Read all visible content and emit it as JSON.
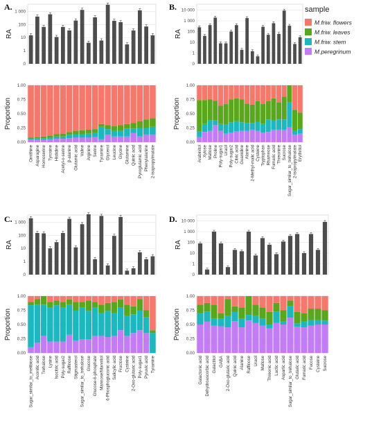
{
  "legend": {
    "title": "sample",
    "items": [
      {
        "label": "M.friw. flowers",
        "color": "#f4786c"
      },
      {
        "label": "M.friw. leaves",
        "color": "#5aa71f"
      },
      {
        "label": "M.friw. stem",
        "color": "#1fb7be"
      },
      {
        "label": "M.peregrinum",
        "color": "#c27cf4"
      }
    ]
  },
  "chart_data": [
    {
      "panel": "A.",
      "type": "bar",
      "ylabel": "RA",
      "scale": "log",
      "yticks": [
        "0",
        "1",
        "10",
        "100",
        "1 000"
      ],
      "categories": [
        "Ornithine",
        "Asparagine",
        "Homoserine",
        "Tyrosine",
        "Histidine",
        "Acetyl-o-serine",
        "β-alanine",
        "Glutamic acid",
        "Valine",
        "Arginine",
        "Serine",
        "Tyramine",
        "Glycerol",
        "Leucine",
        "Glycine",
        "Glutamine",
        "Quinic acid",
        "Pyroglutamic acid",
        "Phenylalanine",
        "2-isopropylmalate"
      ],
      "values": [
        15,
        400,
        65,
        600,
        11,
        65,
        35,
        200,
        1300,
        4,
        350,
        6,
        3200,
        190,
        150,
        3,
        35,
        1200,
        70,
        15
      ],
      "prop_ylabel": "Proportion",
      "prop_yticks": [
        "0.00",
        "0.25",
        "0.50",
        "0.75",
        "1.00"
      ],
      "proportions": {
        "M.friw. flowers": [
          0.92,
          0.91,
          0.9,
          0.89,
          0.86,
          0.85,
          0.82,
          0.8,
          0.79,
          0.78,
          0.77,
          0.68,
          0.7,
          0.72,
          0.7,
          0.68,
          0.66,
          0.63,
          0.6,
          0.58
        ],
        "M.friw. leaves": [
          0.02,
          0.02,
          0.03,
          0.03,
          0.04,
          0.05,
          0.05,
          0.06,
          0.07,
          0.07,
          0.07,
          0.05,
          0.07,
          0.08,
          0.1,
          0.08,
          0.1,
          0.12,
          0.15,
          0.15
        ],
        "M.friw. stem": [
          0.02,
          0.03,
          0.03,
          0.03,
          0.04,
          0.04,
          0.06,
          0.06,
          0.06,
          0.07,
          0.07,
          0.22,
          0.1,
          0.1,
          0.1,
          0.14,
          0.08,
          0.15,
          0.12,
          0.14
        ],
        "M.peregrinum": [
          0.04,
          0.04,
          0.04,
          0.05,
          0.06,
          0.06,
          0.07,
          0.08,
          0.08,
          0.08,
          0.09,
          0.05,
          0.13,
          0.1,
          0.1,
          0.1,
          0.16,
          0.1,
          0.13,
          0.13
        ]
      }
    },
    {
      "panel": "B.",
      "type": "bar",
      "ylabel": "RA",
      "scale": "log",
      "yticks": [
        "0",
        "1",
        "10",
        "100",
        "1 000",
        "10 000"
      ],
      "categories": [
        "Arabinitol",
        "Xylose",
        "Maltose",
        "Proline",
        "Poly-sugar1",
        "Uracil",
        "Poly-sugar2",
        "Citric acid",
        "Guanidine",
        "Alanine",
        "2-Methyl-malic acid",
        "Cysteine",
        "Tryptophan",
        "Rhamnose",
        "Fumaric acid",
        "Threonine",
        "Sucrose",
        "Sugar_similar_to_trehalose",
        "2-isopropylmalate",
        "Erythritol"
      ],
      "values": [
        250,
        40,
        400,
        2000,
        8,
        8,
        100,
        400,
        2,
        1800,
        1.5,
        0.5,
        280,
        50,
        600,
        60,
        9000,
        350,
        7,
        30
      ],
      "prop_ylabel": "Proportion",
      "prop_yticks": [
        "0.00",
        "0.25",
        "0.50",
        "0.75",
        "1.00"
      ],
      "proportions": {
        "M.friw. flowers": [
          0.26,
          0.26,
          0.25,
          0.27,
          0.36,
          0.33,
          0.25,
          0.23,
          0.25,
          0.32,
          0.34,
          0.28,
          0.33,
          0.28,
          0.23,
          0.3,
          0.2,
          0.0,
          0.43,
          0.48
        ],
        "M.friw. leaves": [
          0.55,
          0.42,
          0.37,
          0.35,
          0.32,
          0.36,
          0.4,
          0.4,
          0.4,
          0.34,
          0.32,
          0.36,
          0.35,
          0.32,
          0.38,
          0.3,
          0.4,
          0.3,
          0.37,
          0.29
        ],
        "M.friw. stem": [
          0.1,
          0.14,
          0.18,
          0.08,
          0.12,
          0.16,
          0.18,
          0.18,
          0.15,
          0.14,
          0.12,
          0.16,
          0.15,
          0.22,
          0.17,
          0.18,
          0.18,
          0.44,
          0.07,
          0.08
        ],
        "M.peregrinum": [
          0.09,
          0.18,
          0.2,
          0.3,
          0.2,
          0.15,
          0.17,
          0.19,
          0.2,
          0.2,
          0.22,
          0.2,
          0.17,
          0.18,
          0.22,
          0.22,
          0.22,
          0.26,
          0.13,
          0.15
        ]
      }
    },
    {
      "panel": "C.",
      "type": "bar",
      "ylabel": "RA",
      "scale": "log",
      "yticks": [
        "0",
        "1",
        "10",
        "100",
        "1 000"
      ],
      "categories": [
        "Sugar_similar_to_melibiose",
        "Aconitic acid",
        "Trehalose",
        "Lysine",
        "Isocitric acid",
        "Poly-sugar2",
        "Raffinose",
        "Stigmasterol",
        "Sugar_similar_to_trehalose",
        "Glucose",
        "Glucose-6-phosphate",
        "Mannose/Mannitol",
        "6-Phosphogluconic acid",
        "Salicylic acid",
        "Fructose",
        "Cysteine",
        "2-Oxo-glutaric acid",
        "Poly-sugar1",
        "Pyruvic acid",
        "Tyramine"
      ],
      "values": [
        2000,
        150,
        140,
        10,
        30,
        150,
        1800,
        12,
        700,
        4000,
        1.5,
        3000,
        0.5,
        90,
        2500,
        0.2,
        0.3,
        5,
        1.5,
        2.5
      ],
      "prop_ylabel": "Proportion",
      "prop_yticks": [
        "0.00",
        "0.25",
        "0.50",
        "0.75",
        "1.00"
      ],
      "proportions": {
        "M.friw. flowers": [
          0.1,
          0.05,
          0.0,
          0.1,
          0.08,
          0.1,
          0.06,
          0.1,
          0.1,
          0.08,
          0.1,
          0.15,
          0.12,
          0.1,
          0.06,
          0.15,
          0.18,
          0.05,
          0.25,
          0.6
        ],
        "M.friw. leaves": [
          0.06,
          0.1,
          0.15,
          0.1,
          0.08,
          0.1,
          0.09,
          0.15,
          0.1,
          0.18,
          0.1,
          0.15,
          0.14,
          0.2,
          0.14,
          0.2,
          0.14,
          0.2,
          0.12,
          0.05
        ],
        "M.friw. stem": [
          0.74,
          0.67,
          0.55,
          0.6,
          0.64,
          0.6,
          0.53,
          0.53,
          0.56,
          0.5,
          0.5,
          0.4,
          0.46,
          0.4,
          0.4,
          0.35,
          0.33,
          0.35,
          0.28,
          0.35
        ],
        "M.peregrinum": [
          0.1,
          0.18,
          0.3,
          0.2,
          0.2,
          0.2,
          0.32,
          0.22,
          0.24,
          0.24,
          0.3,
          0.3,
          0.28,
          0.3,
          0.4,
          0.3,
          0.35,
          0.4,
          0.35,
          0.0
        ]
      }
    },
    {
      "panel": "D.",
      "type": "bar",
      "ylabel": "RA",
      "scale": "log",
      "yticks": [
        "0",
        "1",
        "10",
        "100",
        "1 000",
        "10 000"
      ],
      "categories": [
        "Galactonic acid",
        "Dehydroascorbic acid",
        "Galactitol",
        "GABA",
        "2-Oxo-glutaric acid",
        "Quinic acid",
        "Alanine",
        "Raffinose",
        "Uracil",
        "Maltose",
        "Threonic acid",
        "Lactic acid",
        "Aspartic acid",
        "Sugar_similar_to_trehalose",
        "Glutaric acid",
        "Fumaric acid",
        "Fucose",
        "Cysteine",
        "Sucrose"
      ],
      "values": [
        80,
        0.3,
        1000,
        80,
        0.5,
        20,
        15,
        1000,
        6,
        250,
        60,
        8,
        120,
        400,
        600,
        10,
        600,
        20,
        8000
      ],
      "prop_ylabel": "Proportion",
      "prop_yticks": [
        "0.00",
        "0.25",
        "0.50",
        "0.75",
        "1.00"
      ],
      "proportions": {
        "M.friw. flowers": [
          0.15,
          0.12,
          0.15,
          0.3,
          0.05,
          0.18,
          0.2,
          0.0,
          0.15,
          0.2,
          0.28,
          0.12,
          0.25,
          0.08,
          0.28,
          0.3,
          0.22,
          0.22,
          0.25
        ],
        "M.friw. leaves": [
          0.15,
          0.15,
          0.25,
          0.1,
          0.3,
          0.1,
          0.2,
          0.33,
          0.2,
          0.2,
          0.22,
          0.15,
          0.2,
          0.1,
          0.2,
          0.15,
          0.2,
          0.2,
          0.18
        ],
        "M.friw. stem": [
          0.2,
          0.18,
          0.12,
          0.13,
          0.2,
          0.16,
          0.15,
          0.1,
          0.12,
          0.12,
          0.07,
          0.2,
          0.05,
          0.2,
          0.06,
          0.1,
          0.1,
          0.08,
          0.07
        ],
        "M.peregrinum": [
          0.5,
          0.55,
          0.48,
          0.47,
          0.45,
          0.56,
          0.45,
          0.57,
          0.53,
          0.48,
          0.43,
          0.53,
          0.5,
          0.62,
          0.46,
          0.45,
          0.48,
          0.5,
          0.5
        ]
      }
    }
  ]
}
